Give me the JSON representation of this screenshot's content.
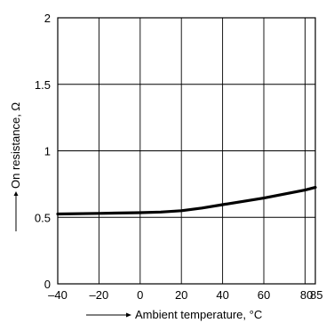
{
  "chart_data": {
    "type": "line",
    "xlabel": "Ambient temperature, °C",
    "ylabel": "On resistance, Ω",
    "xlim": [
      -40,
      85
    ],
    "ylim": [
      0,
      2
    ],
    "x_ticks": [
      -40,
      -20,
      0,
      20,
      40,
      60,
      80,
      85
    ],
    "x_tick_labels": [
      "–40",
      "–20",
      "0",
      "20",
      "40",
      "60",
      "80",
      "85"
    ],
    "y_ticks": [
      0,
      0.5,
      1,
      1.5,
      2
    ],
    "y_tick_labels": [
      "0",
      "0.5",
      "1",
      "1.5",
      "2"
    ],
    "grid": true,
    "series": [
      {
        "x": [
          -40,
          -20,
          0,
          10,
          20,
          30,
          40,
          50,
          60,
          70,
          80,
          85
        ],
        "y": [
          0.525,
          0.53,
          0.535,
          0.54,
          0.55,
          0.57,
          0.595,
          0.62,
          0.645,
          0.675,
          0.705,
          0.725
        ]
      }
    ]
  }
}
